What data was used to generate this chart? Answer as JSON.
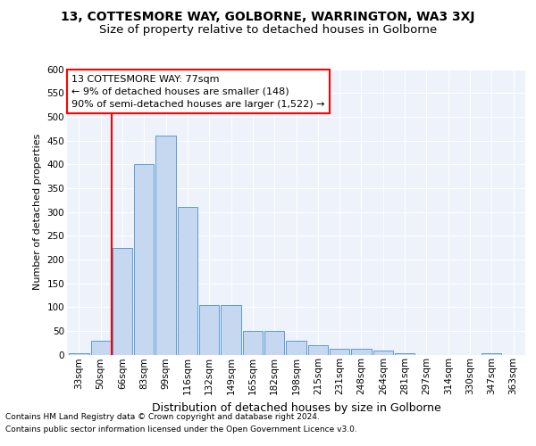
{
  "title1": "13, COTTESMORE WAY, GOLBORNE, WARRINGTON, WA3 3XJ",
  "title2": "Size of property relative to detached houses in Golborne",
  "xlabel": "Distribution of detached houses by size in Golborne",
  "ylabel": "Number of detached properties",
  "categories": [
    "33sqm",
    "50sqm",
    "66sqm",
    "83sqm",
    "99sqm",
    "116sqm",
    "132sqm",
    "149sqm",
    "165sqm",
    "182sqm",
    "198sqm",
    "215sqm",
    "231sqm",
    "248sqm",
    "264sqm",
    "281sqm",
    "297sqm",
    "314sqm",
    "330sqm",
    "347sqm",
    "363sqm"
  ],
  "values": [
    2,
    30,
    225,
    400,
    460,
    310,
    105,
    105,
    50,
    50,
    30,
    20,
    12,
    12,
    8,
    2,
    0,
    0,
    0,
    2,
    0
  ],
  "bar_color": "#c5d8f0",
  "bar_edge_color": "#5b9bd5",
  "annotation_text": "13 COTTESMORE WAY: 77sqm\n← 9% of detached houses are smaller (148)\n90% of semi-detached houses are larger (1,522) →",
  "annotation_box_color": "white",
  "annotation_box_edge_color": "red",
  "vline_x": 1.5,
  "vline_color": "red",
  "ylim": [
    0,
    600
  ],
  "yticks": [
    0,
    50,
    100,
    150,
    200,
    250,
    300,
    350,
    400,
    450,
    500,
    550,
    600
  ],
  "footnote1": "Contains HM Land Registry data © Crown copyright and database right 2024.",
  "footnote2": "Contains public sector information licensed under the Open Government Licence v3.0.",
  "bg_color": "#eef2fa",
  "title1_fontsize": 10,
  "title2_fontsize": 9.5,
  "bar_fontsize": 8,
  "ylabel_fontsize": 8,
  "xlabel_fontsize": 9,
  "annot_fontsize": 8,
  "tick_fontsize": 7.5,
  "footnote_fontsize": 6.5
}
